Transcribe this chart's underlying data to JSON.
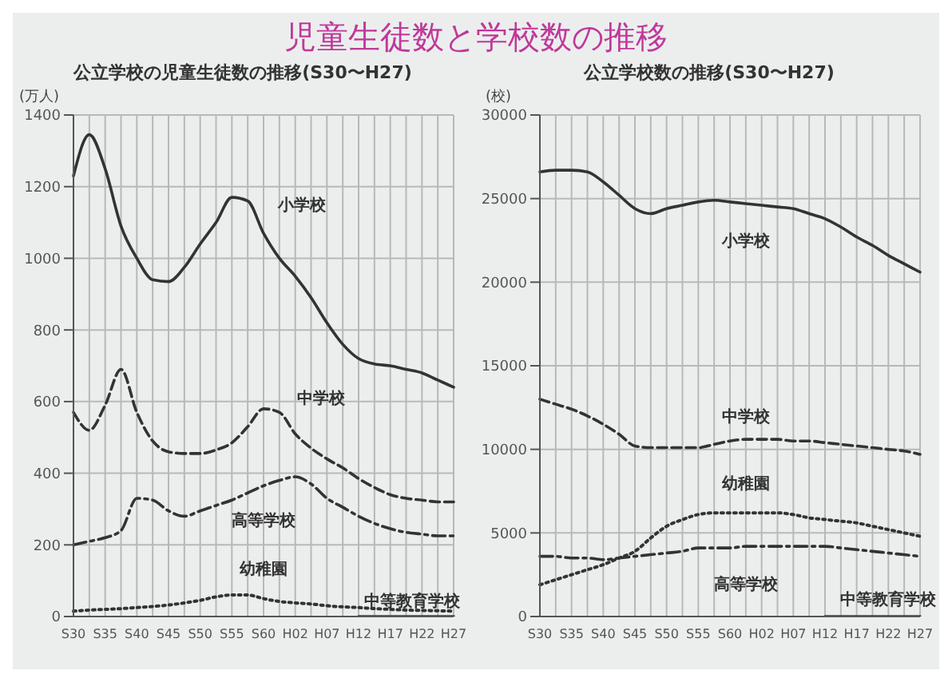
{
  "chart_data": [
    {
      "type": "line",
      "title": "児童生徒数と学校数の推移",
      "subtitle": "公立学校の児童生徒数の推移(S30〜H27)",
      "ylabel": "(万人)",
      "categories": [
        "S30",
        null,
        "S35",
        null,
        "S40",
        null,
        "S45",
        null,
        "S50",
        null,
        "S55",
        null,
        "S60",
        null,
        "H02",
        null,
        "H07",
        null,
        "H12",
        null,
        "H17",
        null,
        "H22",
        null,
        "H27"
      ],
      "ylim": [
        0,
        1400
      ],
      "yticks": [
        0,
        200,
        400,
        600,
        800,
        1000,
        1200,
        1400
      ],
      "grid": true,
      "series": [
        {
          "name": "小学校",
          "color": "#333333",
          "line_style": "solid",
          "values": [
            1230,
            1345,
            1250,
            1090,
            1000,
            940,
            935,
            975,
            1040,
            1100,
            1170,
            1160,
            1070,
            1000,
            950,
            890,
            820,
            760,
            720,
            705,
            700,
            690,
            680,
            660,
            640
          ]
        },
        {
          "name": "中学校",
          "color": "#333333",
          "line_style": "dashed",
          "values": [
            570,
            520,
            590,
            690,
            570,
            490,
            460,
            455,
            455,
            465,
            485,
            530,
            580,
            570,
            510,
            470,
            440,
            415,
            385,
            360,
            340,
            330,
            325,
            320,
            320
          ]
        },
        {
          "name": "高等学校",
          "color": "#333333",
          "line_style": "dashdot",
          "values": [
            200,
            210,
            220,
            240,
            330,
            325,
            295,
            280,
            295,
            310,
            325,
            345,
            365,
            380,
            390,
            370,
            330,
            305,
            280,
            260,
            245,
            235,
            230,
            225,
            225
          ]
        },
        {
          "name": "幼稚園",
          "color": "#333333",
          "line_style": "dotted",
          "values": [
            15,
            18,
            20,
            22,
            25,
            28,
            32,
            38,
            45,
            55,
            60,
            60,
            50,
            42,
            38,
            35,
            30,
            27,
            25,
            22,
            20,
            18,
            17,
            16,
            15
          ]
        },
        {
          "name": "中等教育学校",
          "color": "#333333",
          "line_style": "solid",
          "values": [
            null,
            null,
            null,
            null,
            null,
            null,
            null,
            null,
            null,
            null,
            null,
            null,
            null,
            null,
            null,
            null,
            null,
            null,
            0,
            0,
            0,
            0,
            0,
            0,
            0
          ]
        }
      ]
    },
    {
      "type": "line",
      "subtitle": "公立学校数の推移(S30〜H27)",
      "ylabel": "(校)",
      "categories": [
        "S30",
        null,
        "S35",
        null,
        "S40",
        null,
        "S45",
        null,
        "S50",
        null,
        "S55",
        null,
        "S60",
        null,
        "H02",
        null,
        "H07",
        null,
        "H12",
        null,
        "H17",
        null,
        "H22",
        null,
        "H27"
      ],
      "ylim": [
        0,
        30000
      ],
      "yticks": [
        0,
        5000,
        10000,
        15000,
        20000,
        25000,
        30000
      ],
      "grid": true,
      "series": [
        {
          "name": "小学校",
          "color": "#333333",
          "line_style": "solid",
          "values": [
            26600,
            26700,
            26700,
            26600,
            26000,
            25200,
            24400,
            24100,
            24400,
            24600,
            24800,
            24900,
            24800,
            24700,
            24600,
            24500,
            24400,
            24100,
            23800,
            23300,
            22700,
            22200,
            21600,
            21100,
            20600
          ]
        },
        {
          "name": "中学校",
          "color": "#333333",
          "line_style": "dashed",
          "values": [
            13000,
            12700,
            12400,
            12000,
            11500,
            10900,
            10200,
            10100,
            10100,
            10100,
            10100,
            10300,
            10500,
            10600,
            10600,
            10600,
            10500,
            10500,
            10400,
            10300,
            10200,
            10100,
            10000,
            9900,
            9700
          ]
        },
        {
          "name": "幼稚園",
          "color": "#333333",
          "line_style": "dotted",
          "values": [
            1900,
            2200,
            2500,
            2800,
            3100,
            3500,
            3900,
            4700,
            5400,
            5800,
            6100,
            6200,
            6200,
            6200,
            6200,
            6200,
            6100,
            5900,
            5800,
            5700,
            5600,
            5400,
            5200,
            5000,
            4800
          ]
        },
        {
          "name": "高等学校",
          "color": "#333333",
          "line_style": "dashdot",
          "values": [
            3600,
            3600,
            3500,
            3500,
            3400,
            3500,
            3600,
            3700,
            3800,
            3900,
            4100,
            4100,
            4100,
            4200,
            4200,
            4200,
            4200,
            4200,
            4200,
            4100,
            4000,
            3900,
            3800,
            3700,
            3600
          ]
        },
        {
          "name": "中等教育学校",
          "color": "#333333",
          "line_style": "solid",
          "values": [
            null,
            null,
            null,
            null,
            null,
            null,
            null,
            null,
            null,
            null,
            null,
            null,
            null,
            null,
            null,
            null,
            null,
            null,
            0,
            0,
            0,
            0,
            0,
            0,
            0
          ]
        }
      ]
    }
  ]
}
